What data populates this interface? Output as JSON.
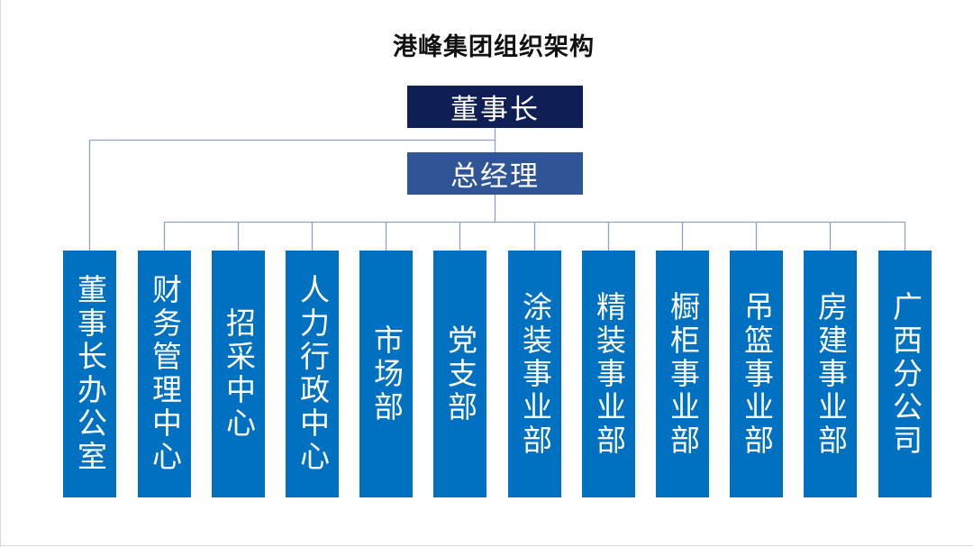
{
  "title": "港峰集团组织架构",
  "chairman": "董事长",
  "general_manager": "总经理",
  "departments": [
    "董事长办公室",
    "财务管理中心",
    "招采中心",
    "人力行政中心",
    "市场部",
    "党支部",
    "涂装事业部",
    "精装事业部",
    "橱柜事业部",
    "吊篮事业部",
    "房建事业部",
    "广西分公司"
  ],
  "colors": {
    "chairman_box": "#0f1f55",
    "general_manager_box": "#2f5597",
    "department_box": "#0070c0",
    "connector": "#8ea2c6"
  }
}
